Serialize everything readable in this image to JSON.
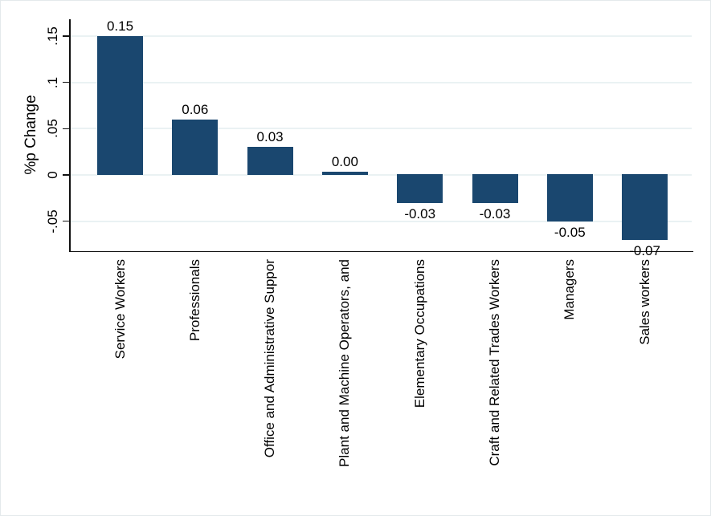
{
  "chart_data": {
    "type": "bar",
    "title": "",
    "xlabel": "",
    "ylabel": "%p Change",
    "categories": [
      "Service Workers",
      "Professionals",
      "Office and Administrative Suppor",
      "Plant and Machine Operators, and",
      "Elementary Occupations",
      "Craft and Related Trades Workers",
      "Managers",
      "Sales workers"
    ],
    "values": [
      0.15,
      0.06,
      0.03,
      0.0,
      -0.03,
      -0.03,
      -0.05,
      -0.07
    ],
    "bar_labels": [
      "0.15",
      "0.06",
      "0.03",
      "0.00",
      "-0.03",
      "-0.03",
      "-0.05",
      "-0.07"
    ],
    "y_tick_labels": [
      ".15",
      ".1",
      ".05",
      "0",
      "-.05"
    ],
    "y_tick_values": [
      0.15,
      0.1,
      0.05,
      0,
      -0.05
    ],
    "ylim": [
      -0.083,
      0.169
    ],
    "grid": true,
    "legend_position": "none",
    "category_label_rotation_deg": 90,
    "bar_color": "#1a476f",
    "grid_color": "#eaf2f3",
    "axis_color": "#111111",
    "text_color": "#000000"
  }
}
